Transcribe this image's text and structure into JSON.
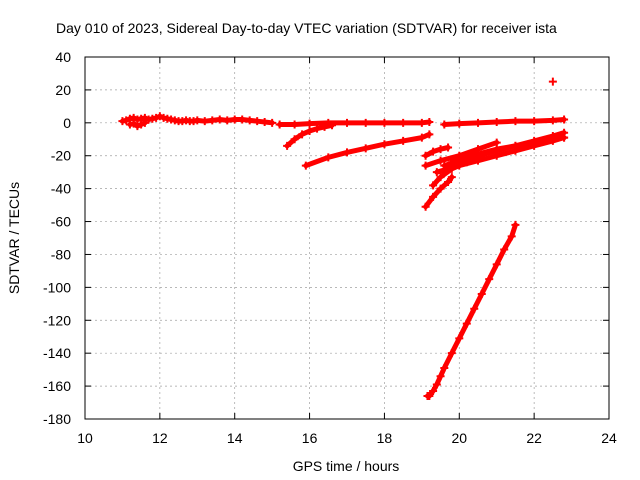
{
  "chart_data": {
    "type": "scatter",
    "title": "Day 010 of 2023, Sidereal Day-to-day VTEC variation (SDTVAR) for receiver ista",
    "xlabel": "GPS time / hours",
    "ylabel": "SDTVAR / TECUs",
    "xlim": [
      10,
      24
    ],
    "ylim": [
      -180,
      40
    ],
    "xticks": [
      10,
      12,
      14,
      16,
      18,
      20,
      22,
      24
    ],
    "yticks": [
      -180,
      -160,
      -140,
      -120,
      -100,
      -80,
      -60,
      -40,
      -20,
      0,
      20,
      40
    ],
    "grid": true,
    "marker_color": "#ff0000",
    "series": [
      {
        "x": [
          11.0,
          11.1,
          11.2,
          11.3,
          11.4,
          11.5,
          11.6,
          11.7,
          11.8,
          11.9,
          12.0,
          12.1,
          12.2,
          12.3,
          12.4,
          12.5,
          12.6,
          12.7,
          12.8,
          12.9,
          13.0,
          13.2,
          13.4,
          13.6,
          13.8,
          14.0,
          14.2,
          14.4,
          14.6,
          14.8,
          15.0
        ],
        "y": [
          1.0,
          1.5,
          2.5,
          3.0,
          2.0,
          2.5,
          3.0,
          2.0,
          2.5,
          3.0,
          4.0,
          3.0,
          2.5,
          2.0,
          1.5,
          1.0,
          1.0,
          1.5,
          1.0,
          1.0,
          1.5,
          1.0,
          1.5,
          2.0,
          1.5,
          2.0,
          2.0,
          1.5,
          1.0,
          0.5,
          0.0
        ]
      },
      {
        "x": [
          11.2,
          11.3,
          11.4,
          11.5,
          11.6
        ],
        "y": [
          -1.0,
          -0.5,
          -2.0,
          -1.0,
          0.0
        ]
      },
      {
        "x": [
          15.2,
          15.6,
          16.0,
          16.5,
          17.0,
          17.5,
          18.0,
          18.5,
          19.0,
          19.2
        ],
        "y": [
          -1.0,
          -1.0,
          -0.5,
          0.0,
          0.0,
          0.0,
          0.0,
          0.0,
          0.0,
          0.5
        ]
      },
      {
        "x": [
          15.4,
          15.6,
          15.8,
          16.0,
          16.2,
          16.4,
          16.6
        ],
        "y": [
          -14.0,
          -10.0,
          -7.0,
          -5.0,
          -3.5,
          -2.5,
          -1.5
        ]
      },
      {
        "x": [
          15.9,
          16.5,
          17.0,
          17.5,
          18.0,
          18.5,
          19.0,
          19.2
        ],
        "y": [
          -26.0,
          -21.0,
          -18.0,
          -15.5,
          -13.0,
          -11.0,
          -9.0,
          -7.0
        ]
      },
      {
        "x": [
          19.1,
          19.3,
          19.5,
          19.7
        ],
        "y": [
          -20.0,
          -17.5,
          -16.0,
          -15.0
        ]
      },
      {
        "x": [
          19.1,
          19.5,
          20.0,
          20.5,
          21.0
        ],
        "y": [
          -26.0,
          -23.0,
          -20.0,
          -16.0,
          -12.0
        ]
      },
      {
        "x": [
          19.1,
          19.3,
          19.5,
          19.7,
          19.8
        ],
        "y": [
          -51.0,
          -45.0,
          -40.0,
          -36.0,
          -33.0
        ]
      },
      {
        "x": [
          19.3,
          19.5,
          19.8,
          20.2,
          20.6
        ],
        "y": [
          -38.0,
          -33.0,
          -28.0,
          -24.0,
          -21.0
        ]
      },
      {
        "x": [
          19.4,
          20.0,
          20.5,
          21.0,
          21.5,
          22.0,
          22.5,
          22.8
        ],
        "y": [
          -30.0,
          -26.0,
          -23.0,
          -20.0,
          -17.0,
          -14.0,
          -11.0,
          -9.0
        ]
      },
      {
        "x": [
          19.6,
          20.0,
          20.5,
          21.0,
          21.5,
          22.0,
          22.5,
          22.8
        ],
        "y": [
          -26.0,
          -23.0,
          -20.0,
          -17.0,
          -14.0,
          -11.0,
          -8.0,
          -6.0
        ]
      },
      {
        "x": [
          19.8,
          20.2,
          20.5,
          21.0,
          21.5,
          22.0,
          22.5,
          22.8
        ],
        "y": [
          -24.0,
          -21.0,
          -19.0,
          -16.0,
          -14.0,
          -12.0,
          -10.0,
          -9.0
        ]
      },
      {
        "x": [
          19.6,
          20.0,
          20.5,
          21.0,
          21.5,
          22.0,
          22.5,
          22.8
        ],
        "y": [
          -1.0,
          -0.5,
          0.0,
          0.5,
          1.0,
          1.0,
          1.5,
          2.0
        ]
      },
      {
        "x": [
          19.15,
          19.2,
          19.3,
          19.4,
          19.5,
          19.6,
          19.8,
          20.0,
          20.2,
          20.4,
          20.6,
          20.8,
          21.0,
          21.2,
          21.4,
          21.5
        ],
        "y": [
          -166.0,
          -166.0,
          -163.0,
          -159.0,
          -154.0,
          -149.0,
          -140.0,
          -131.0,
          -122.0,
          -113.0,
          -104.0,
          -95.0,
          -86.0,
          -77.0,
          -69.0,
          -62.0
        ]
      },
      {
        "x": [
          22.5
        ],
        "y": [
          25.0
        ]
      }
    ]
  }
}
